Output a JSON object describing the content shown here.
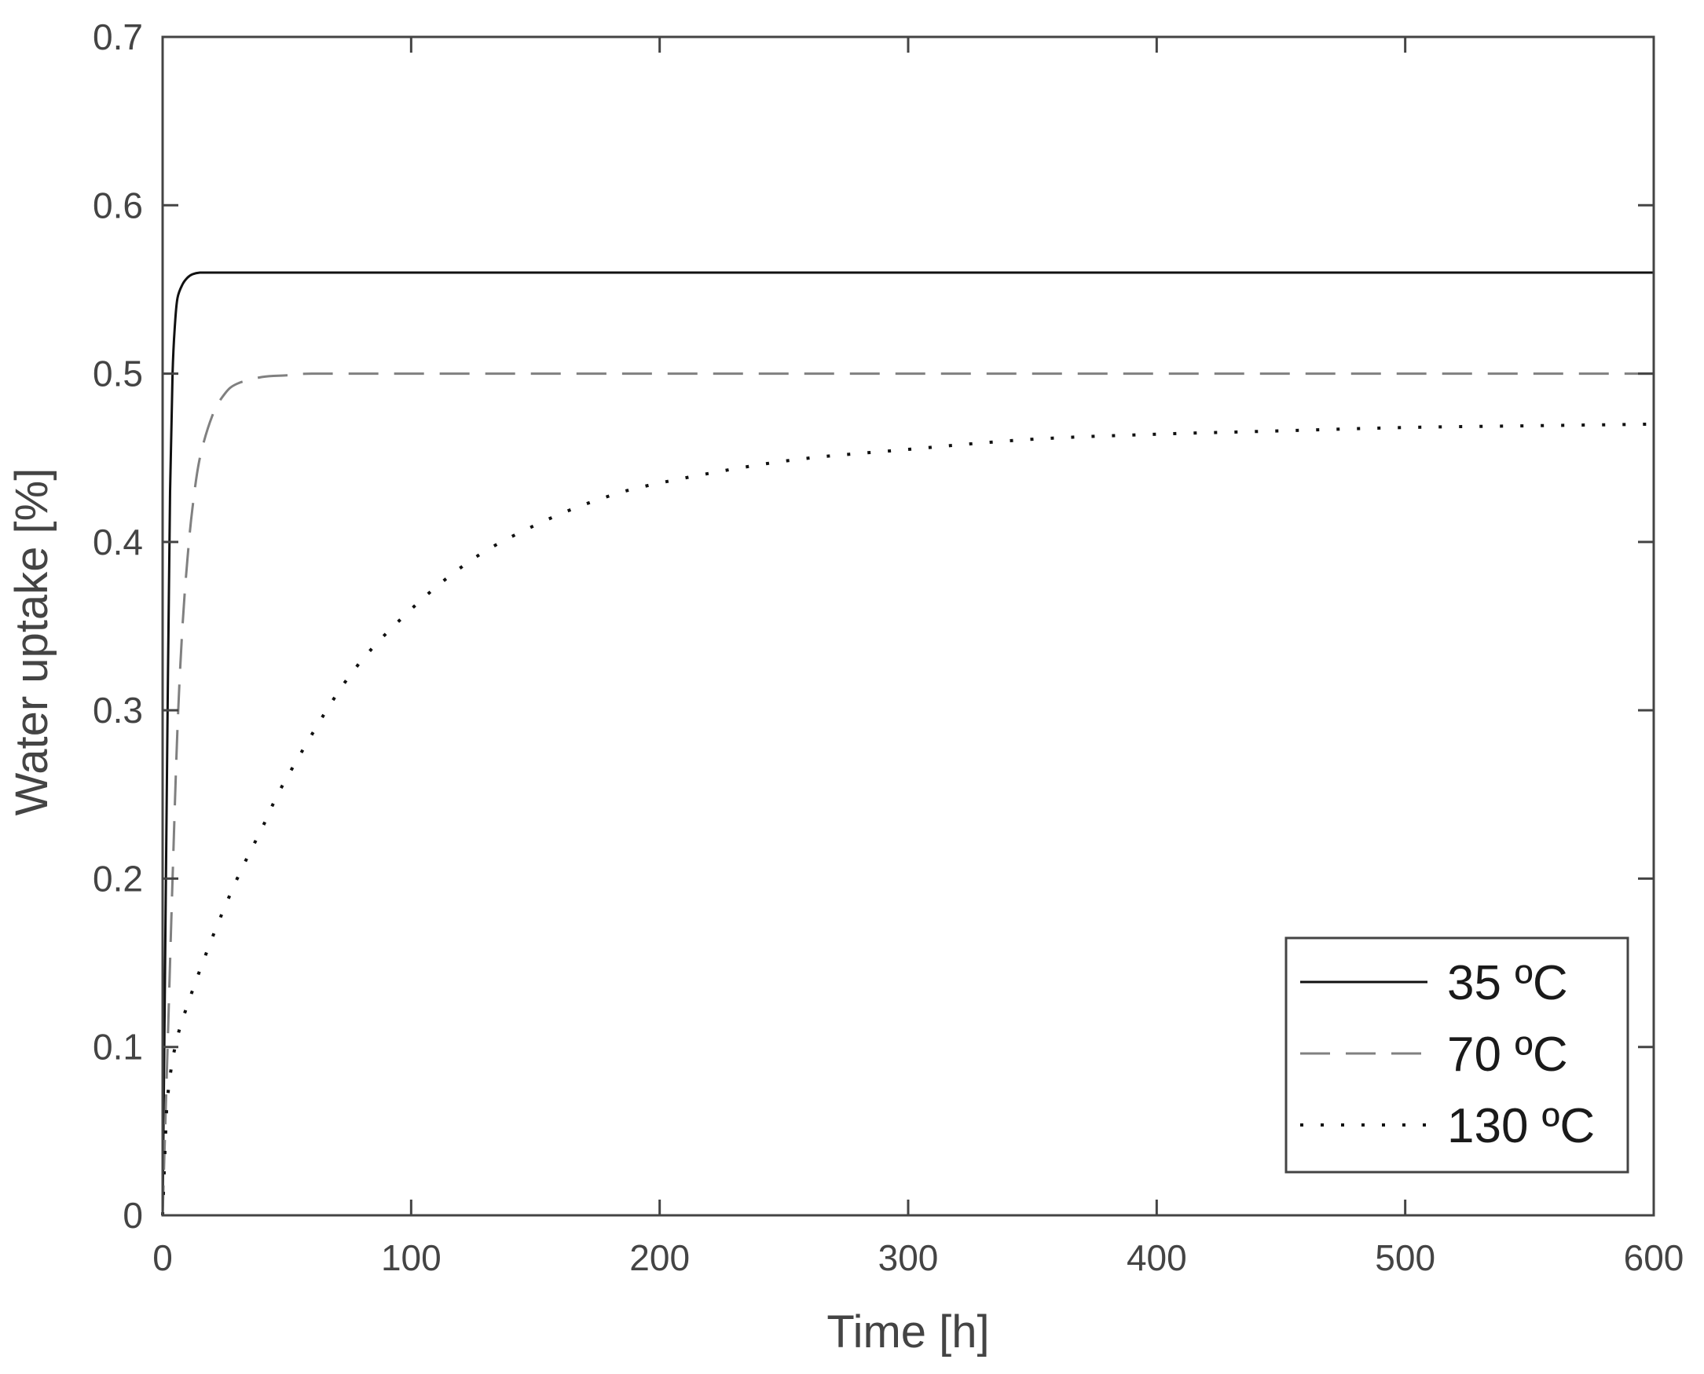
{
  "chart_data": {
    "type": "line",
    "xlabel": "Time [h]",
    "ylabel": "Water uptake [%]",
    "xlim": [
      0,
      600
    ],
    "ylim": [
      0,
      0.7
    ],
    "xticks": [
      0,
      100,
      200,
      300,
      400,
      500,
      600
    ],
    "xtick_labels": [
      "0",
      "100",
      "200",
      "300",
      "400",
      "500",
      "600"
    ],
    "yticks": [
      0,
      0.1,
      0.2,
      0.3,
      0.4,
      0.5,
      0.6,
      0.7
    ],
    "ytick_labels": [
      "0",
      "0.1",
      "0.2",
      "0.3",
      "0.4",
      "0.5",
      "0.6",
      "0.7"
    ],
    "grid": false,
    "legend_position": "bottom-right",
    "series": [
      {
        "name": "35 ºC",
        "style": "solid",
        "color": "#111111",
        "x": [
          0,
          1,
          2,
          3,
          4,
          5,
          6,
          8,
          10,
          12,
          15,
          20,
          30,
          50,
          100,
          200,
          300,
          400,
          500,
          600
        ],
        "y": [
          0,
          0.15,
          0.3,
          0.43,
          0.5,
          0.53,
          0.545,
          0.553,
          0.557,
          0.559,
          0.56,
          0.56,
          0.56,
          0.56,
          0.56,
          0.56,
          0.56,
          0.56,
          0.56,
          0.56
        ]
      },
      {
        "name": "70 ºC",
        "style": "dashed",
        "color": "#808080",
        "x": [
          0,
          2,
          4,
          6,
          8,
          10,
          12,
          15,
          20,
          25,
          30,
          40,
          50,
          60,
          100,
          200,
          300,
          400,
          500,
          600
        ],
        "y": [
          0,
          0.1,
          0.2,
          0.29,
          0.35,
          0.39,
          0.42,
          0.45,
          0.475,
          0.488,
          0.494,
          0.498,
          0.499,
          0.5,
          0.5,
          0.5,
          0.5,
          0.5,
          0.5,
          0.5
        ]
      },
      {
        "name": "130 ºC",
        "style": "dotted",
        "color": "#111111",
        "x": [
          0,
          1,
          2,
          5,
          10,
          20,
          30,
          40,
          50,
          75,
          100,
          125,
          150,
          175,
          200,
          250,
          300,
          350,
          400,
          450,
          500,
          550,
          600
        ],
        "y": [
          0,
          0.04,
          0.07,
          0.1,
          0.125,
          0.165,
          0.2,
          0.23,
          0.26,
          0.32,
          0.36,
          0.39,
          0.41,
          0.425,
          0.435,
          0.448,
          0.455,
          0.461,
          0.464,
          0.466,
          0.468,
          0.469,
          0.47
        ]
      }
    ]
  }
}
